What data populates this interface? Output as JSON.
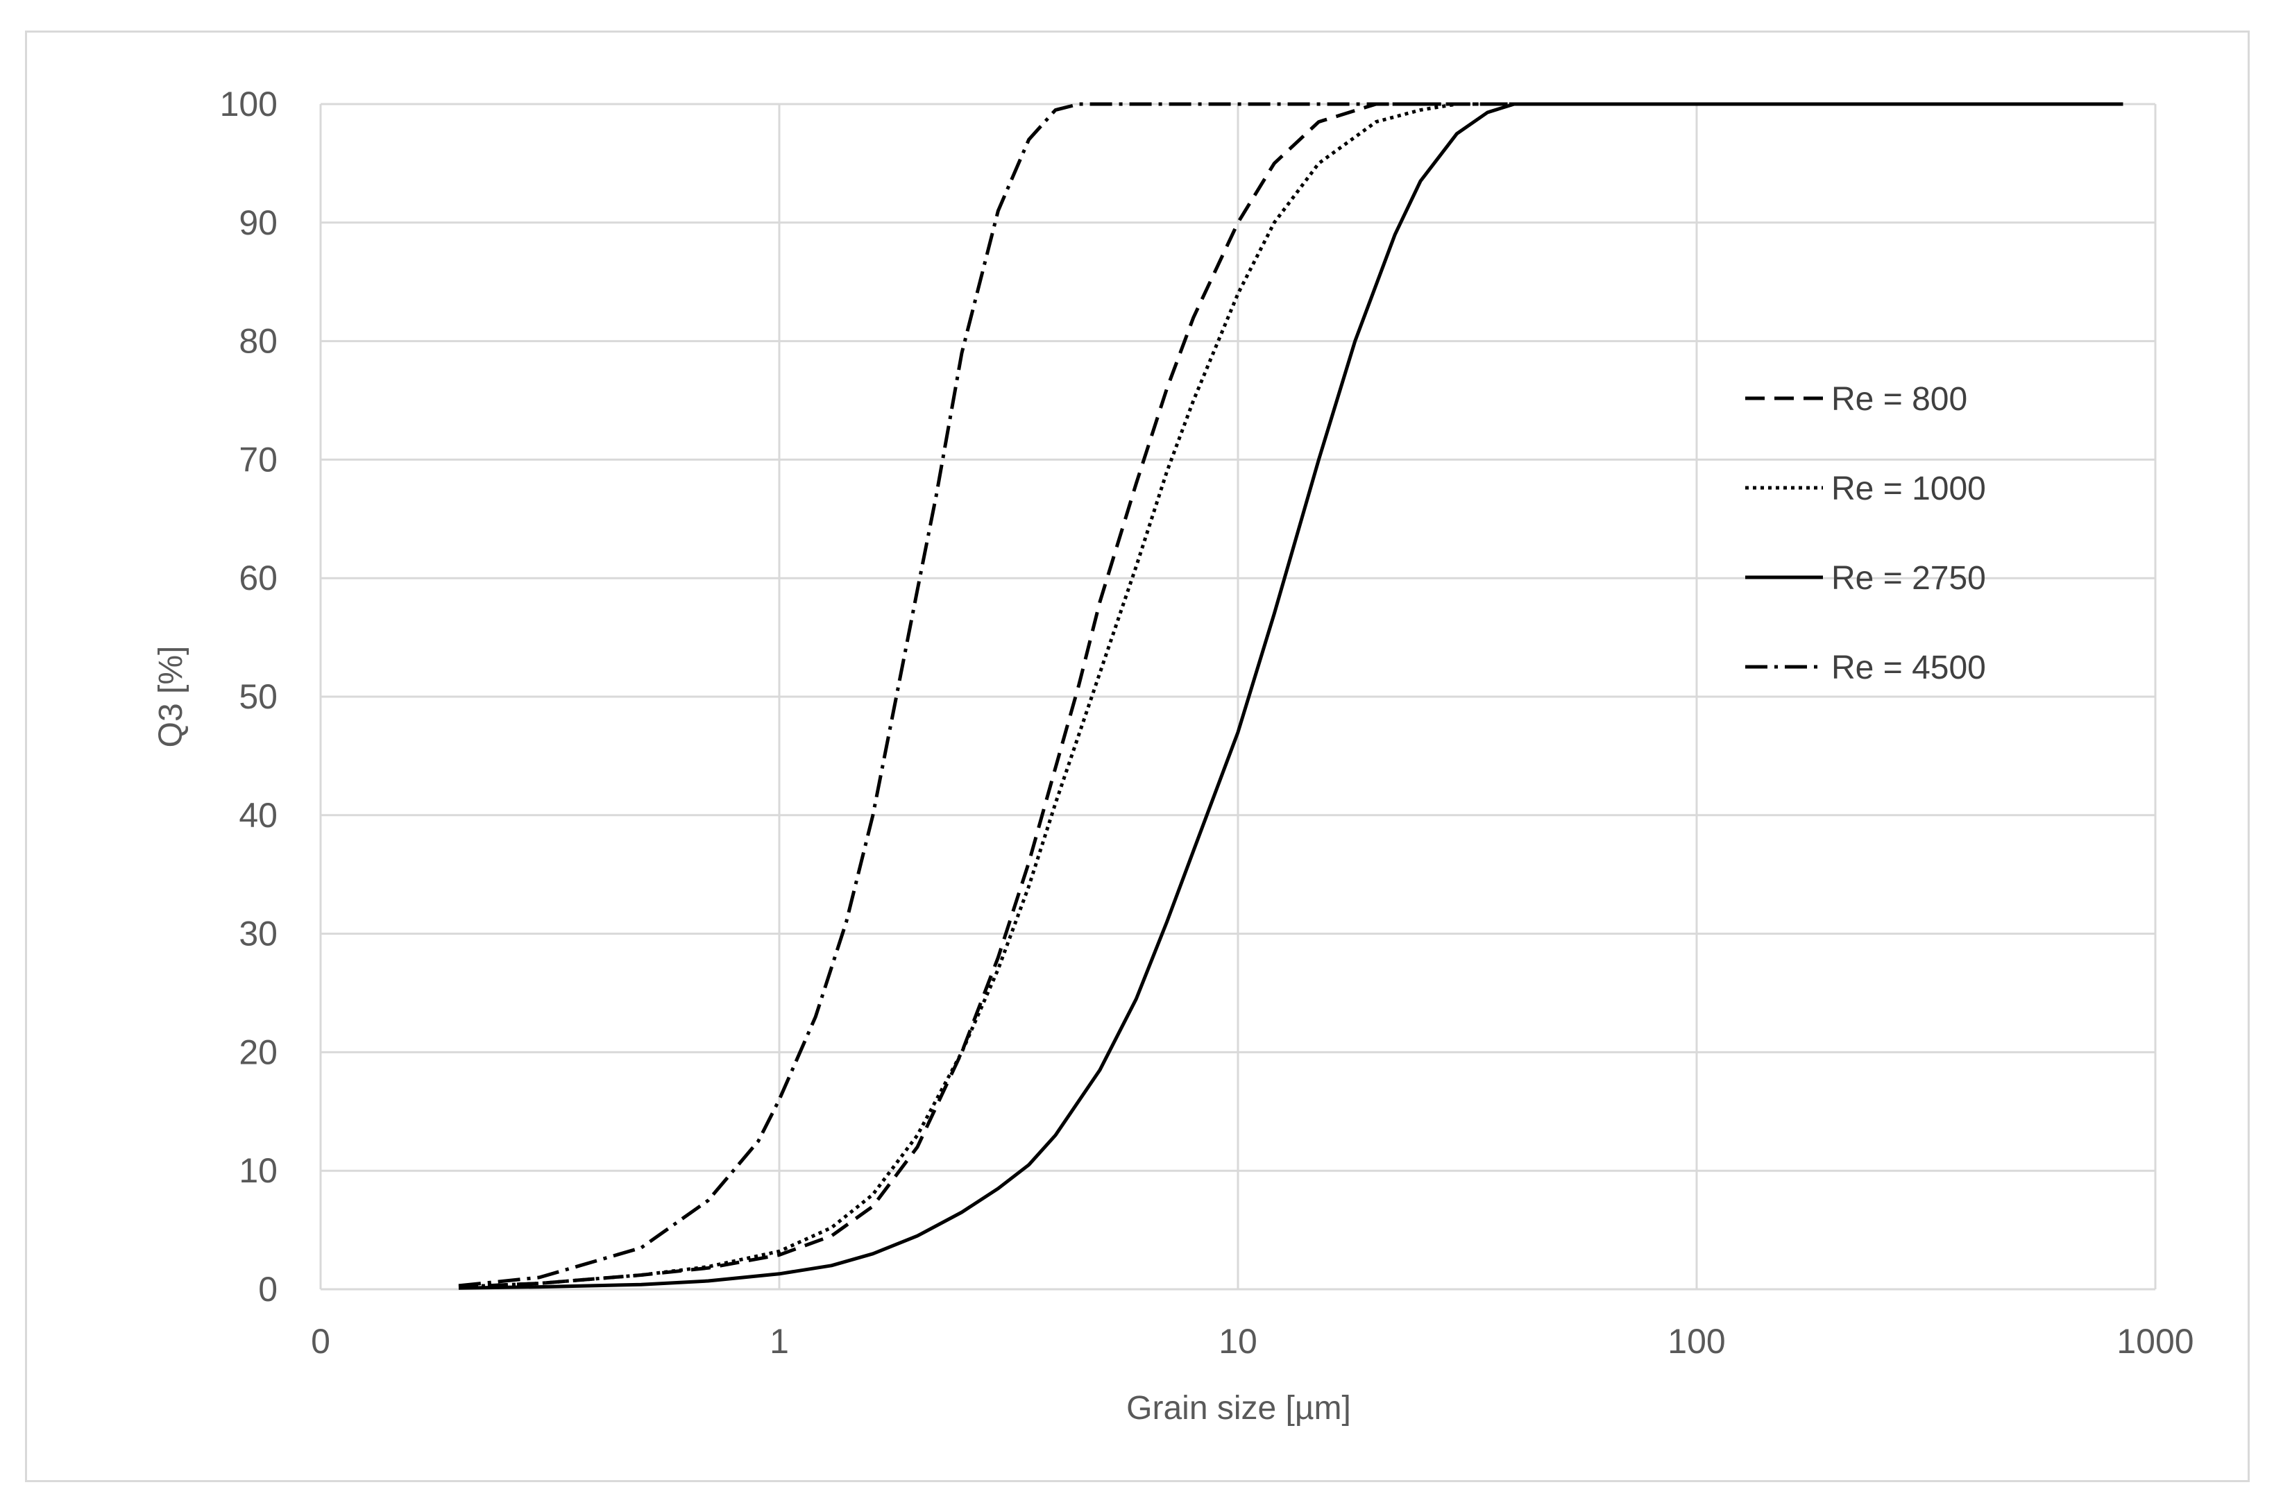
{
  "chart_data": {
    "type": "line",
    "title": "",
    "xlabel": "Grain size [µm]",
    "ylabel": "Q3 [%]",
    "x_scale": "log",
    "x_ticks": [
      "0",
      "1",
      "10",
      "100",
      "1000"
    ],
    "y_ticks": [
      "0",
      "10",
      "20",
      "30",
      "40",
      "50",
      "60",
      "70",
      "80",
      "90",
      "100"
    ],
    "xlim": [
      0.1,
      1000
    ],
    "ylim": [
      0,
      100
    ],
    "grid": true,
    "legend_position": "right",
    "series": [
      {
        "name": "Re = 800",
        "dash": "28,14",
        "x": [
          0.2,
          0.3,
          0.5,
          0.7,
          1.0,
          1.3,
          1.6,
          2.0,
          2.5,
          3.0,
          3.5,
          4.0,
          4.5,
          5.0,
          6.0,
          7.0,
          8.0,
          10.0,
          12.0,
          15.0,
          20.0,
          25.0,
          850.0
        ],
        "y": [
          0.2,
          0.5,
          1.2,
          1.8,
          2.9,
          4.5,
          7.0,
          12.0,
          20.0,
          28.0,
          36.0,
          44.0,
          51.0,
          58.0,
          68.0,
          76.0,
          82.0,
          90.0,
          95.0,
          98.5,
          100.0,
          100.0,
          100.0
        ]
      },
      {
        "name": "Re = 1000",
        "dash": "5,6",
        "x": [
          0.2,
          0.3,
          0.5,
          0.7,
          1.0,
          1.3,
          1.6,
          2.0,
          2.5,
          3.0,
          3.5,
          4.0,
          5.0,
          6.0,
          7.0,
          8.0,
          10.0,
          12.0,
          15.0,
          20.0,
          25.0,
          30.0,
          850.0
        ],
        "y": [
          0.2,
          0.5,
          1.2,
          1.9,
          3.2,
          5.2,
          8.0,
          13.0,
          20.0,
          27.0,
          34.0,
          41.0,
          52.0,
          61.0,
          69.0,
          75.0,
          84.0,
          90.0,
          95.0,
          98.5,
          99.5,
          100.0,
          100.0
        ]
      },
      {
        "name": "Re = 2750",
        "dash": "",
        "x": [
          0.2,
          0.3,
          0.5,
          0.7,
          1.0,
          1.3,
          1.6,
          2.0,
          2.5,
          3.0,
          3.5,
          4.0,
          5.0,
          6.0,
          7.0,
          8.0,
          10.0,
          12.0,
          15.0,
          18.0,
          22.0,
          25.0,
          30.0,
          35.0,
          40.0,
          850.0
        ],
        "y": [
          0.1,
          0.2,
          0.4,
          0.7,
          1.3,
          2.0,
          3.0,
          4.5,
          6.5,
          8.5,
          10.5,
          13.0,
          18.5,
          24.5,
          31.0,
          37.0,
          47.0,
          57.0,
          70.0,
          80.0,
          89.0,
          93.5,
          97.5,
          99.3,
          100.0,
          100.0
        ]
      },
      {
        "name": "Re = 4500",
        "dash": "32,10,5,10",
        "x": [
          0.2,
          0.3,
          0.5,
          0.7,
          0.9,
          1.0,
          1.2,
          1.4,
          1.6,
          1.8,
          2.0,
          2.2,
          2.5,
          3.0,
          3.5,
          4.0,
          4.5,
          5.0,
          850.0
        ],
        "y": [
          0.3,
          1.0,
          3.5,
          7.5,
          12.5,
          16.0,
          23.0,
          31.0,
          40.0,
          50.0,
          59.0,
          67.0,
          79.0,
          91.0,
          97.0,
          99.5,
          100.0,
          100.0,
          100.0
        ]
      }
    ]
  }
}
